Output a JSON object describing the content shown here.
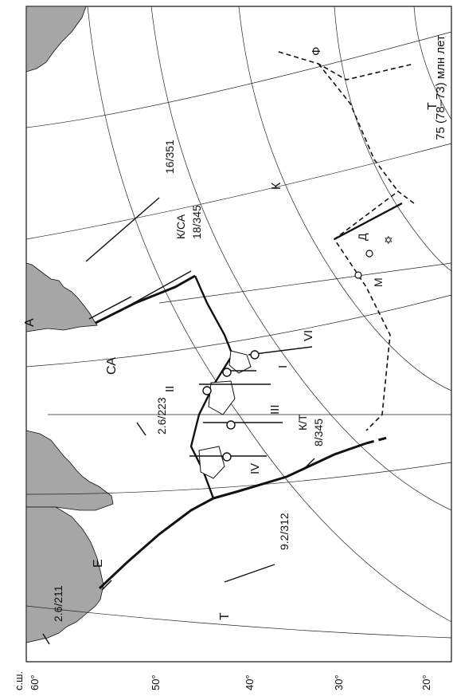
{
  "title": "75 (78–73) млн лет",
  "axis": {
    "unit_label": "с.ш.",
    "latitude_ticks": [
      "60°",
      "50°",
      "40°",
      "30°",
      "20°"
    ]
  },
  "plates": {
    "north_america": "СА",
    "eurasia": "Е",
    "pacific_like": "Т",
    "pacific_right": "Т",
    "kula": "К",
    "farallon": "Ф",
    "africa_top": "А"
  },
  "boundary_labels": {
    "kula_na": "К/СА",
    "kula_t": "К/Т"
  },
  "vectors": [
    {
      "id": "v1",
      "label": "16/351"
    },
    {
      "id": "v2",
      "label": "18/345"
    },
    {
      "id": "v3",
      "label": "8/345"
    },
    {
      "id": "v4",
      "label": "2.6/223"
    },
    {
      "id": "v5",
      "label": "9.2/312"
    },
    {
      "id": "v6",
      "label": "2.6/211"
    }
  ],
  "terranes": [
    "I",
    "II",
    "III",
    "IV",
    "VI"
  ],
  "point_labels": {
    "m": "М",
    "d": "Д"
  },
  "colors": {
    "land": "#a6a6a6",
    "lines": "#111111",
    "grid": "#222222"
  }
}
